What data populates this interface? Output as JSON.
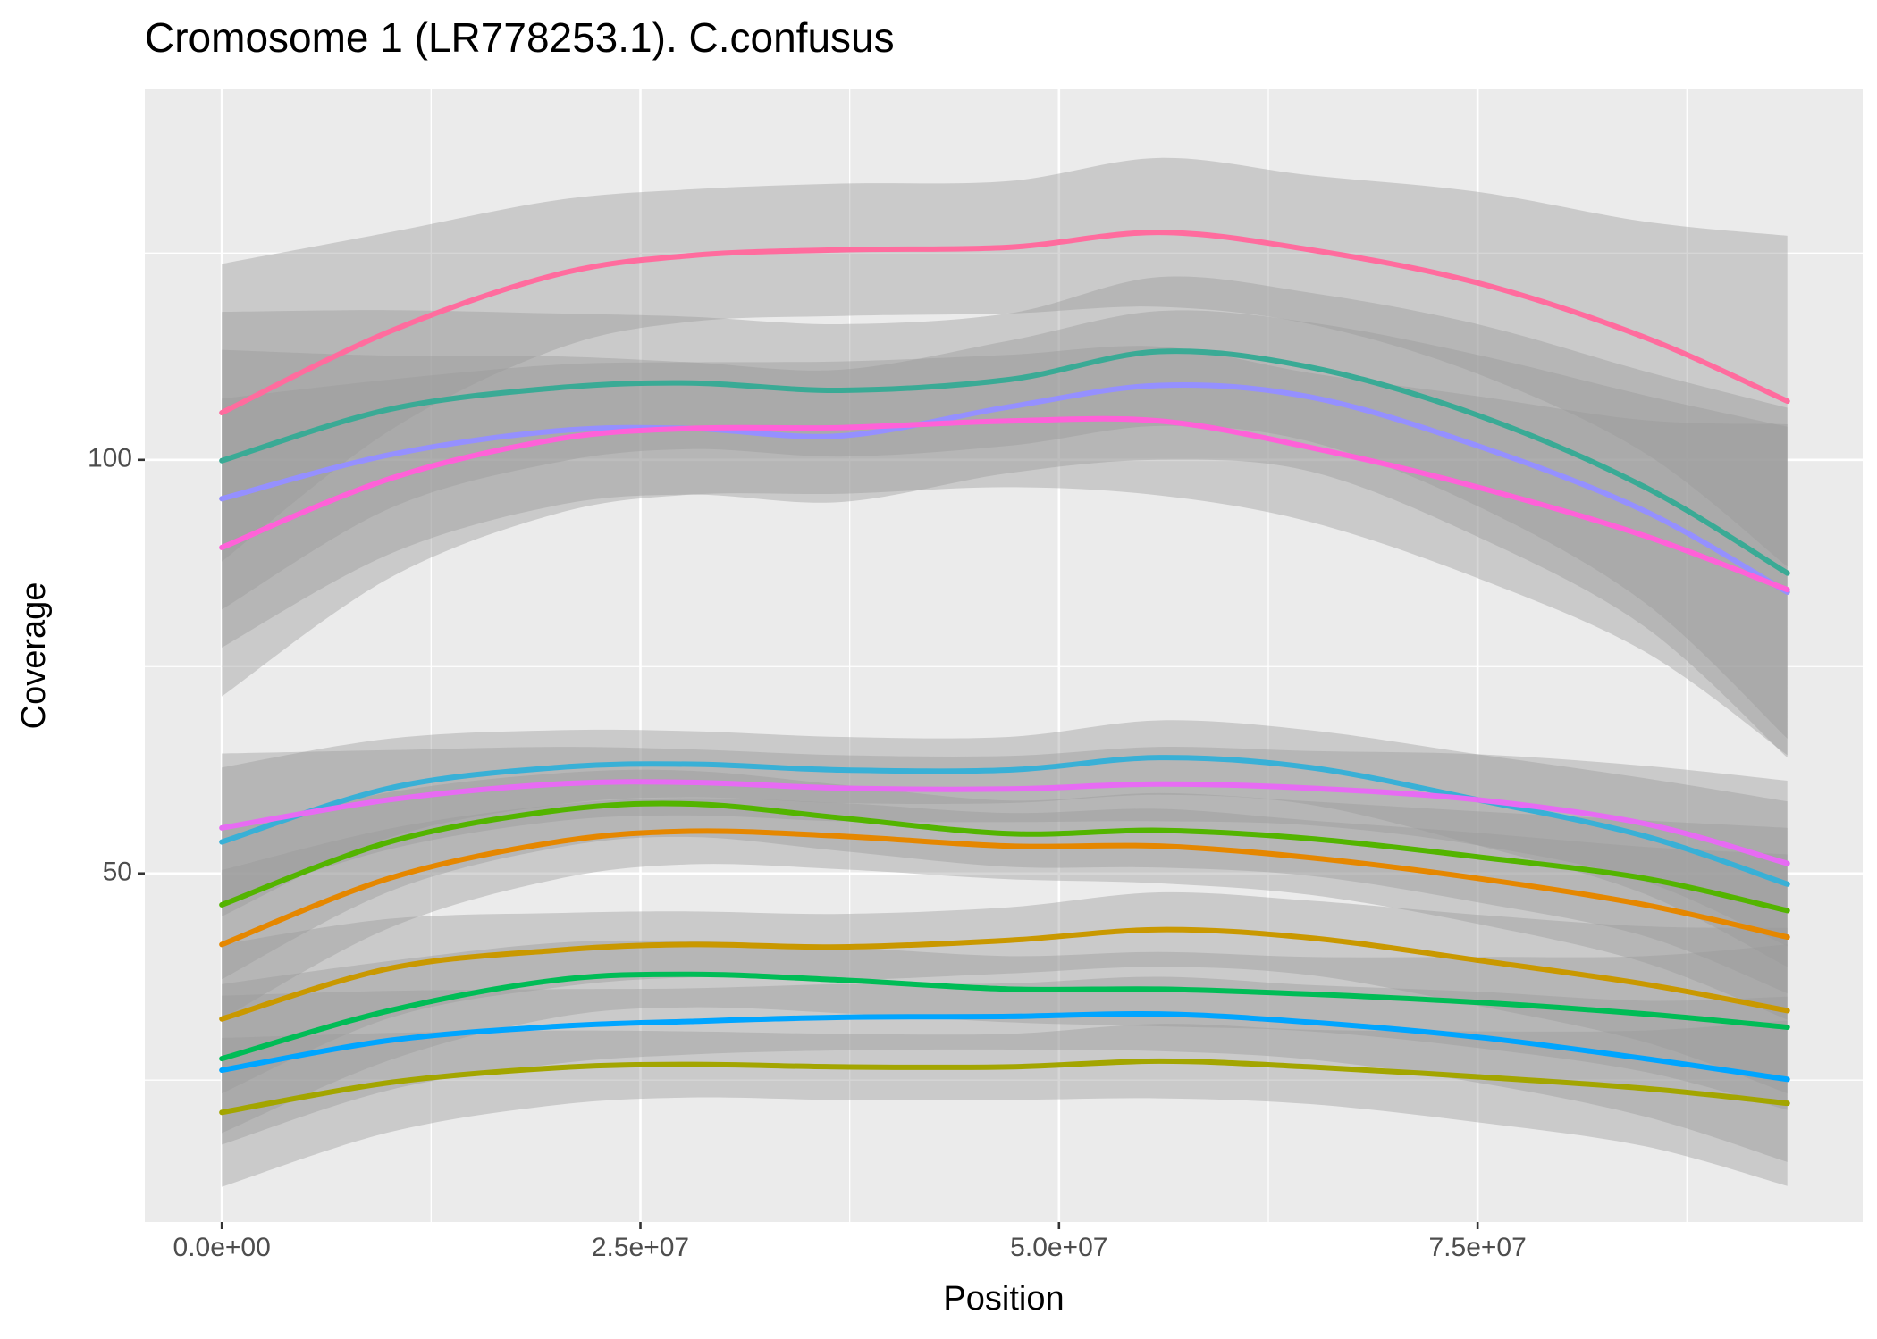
{
  "chart_data": {
    "type": "line",
    "title": "Cromosome 1 (LR778253.1). C.confusus",
    "xlabel": "Position",
    "ylabel": "Coverage",
    "x": [
      0,
      10000000,
      20000000,
      28000000,
      37000000,
      47000000,
      56000000,
      65000000,
      75000000,
      85000000,
      93500000
    ],
    "xlim": [
      -4600000,
      98000000
    ],
    "ylim": [
      7.85,
      144.8
    ],
    "xticks": [
      {
        "value": 0,
        "label": "0.0e+00"
      },
      {
        "value": 25000000,
        "label": "2.5e+07"
      },
      {
        "value": 50000000,
        "label": "5.0e+07"
      },
      {
        "value": 75000000,
        "label": "7.5e+07"
      }
    ],
    "yticks": [
      50,
      100
    ],
    "minor_xticks": [
      12500000,
      37500000,
      62500000,
      87500000
    ],
    "minor_yticks": [
      25,
      75,
      125
    ],
    "grid": true,
    "ribbon_color": "#999999",
    "series": [
      {
        "color": "#FF6C9E",
        "values": [
          105.7,
          115.5,
          122.4,
          124.7,
          125.4,
          125.7,
          127.5,
          125.4,
          121.4,
          114.8,
          107.1
        ],
        "ci_halfwidth": [
          18,
          12,
          9,
          8,
          8,
          8,
          9,
          9,
          11,
          14,
          20
        ]
      },
      {
        "color": "#3AAA95",
        "values": [
          99.9,
          106.1,
          108.7,
          109.3,
          108.4,
          109.7,
          113.1,
          111.2,
          105.4,
          96.7,
          86.3
        ],
        "ci_halfwidth": [
          18,
          12,
          9,
          8,
          8,
          8,
          9,
          9,
          11,
          14,
          20
        ]
      },
      {
        "color": "#9590FF",
        "values": [
          95.3,
          100.6,
          103.5,
          103.8,
          102.9,
          106.4,
          109.0,
          107.6,
          101.7,
          93.8,
          84.0
        ],
        "ci_halfwidth": [
          18,
          12,
          9,
          8,
          8,
          8,
          9,
          9,
          11,
          14,
          20
        ]
      },
      {
        "color": "#FF61D8",
        "values": [
          89.4,
          97.7,
          102.5,
          103.8,
          103.9,
          104.7,
          104.7,
          101.5,
          96.7,
          90.8,
          84.3
        ],
        "ci_halfwidth": [
          18,
          12,
          9,
          8,
          8,
          8,
          9,
          9,
          11,
          14,
          20
        ]
      },
      {
        "color": "#39B0D6",
        "values": [
          53.8,
          60.3,
          62.8,
          63.2,
          62.5,
          62.5,
          64.0,
          62.8,
          58.9,
          54.5,
          48.7
        ],
        "ci_halfwidth": [
          9,
          6,
          4.5,
          4,
          4,
          4,
          4.5,
          4.5,
          5.5,
          7,
          10
        ]
      },
      {
        "color": "#E76BF3",
        "values": [
          55.5,
          58.9,
          60.8,
          61.0,
          60.3,
          60.2,
          60.8,
          60.3,
          58.9,
          56.0,
          51.2
        ],
        "ci_halfwidth": [
          9,
          6,
          4.5,
          4,
          4,
          4,
          4.5,
          4.5,
          5.5,
          7,
          10
        ]
      },
      {
        "color": "#53B400",
        "values": [
          46.2,
          53.8,
          57.6,
          58.4,
          56.7,
          54.8,
          55.2,
          54.2,
          52.0,
          49.4,
          45.5
        ],
        "ci_halfwidth": [
          9,
          6,
          4.5,
          4,
          4,
          4,
          4.5,
          4.5,
          5.5,
          7,
          10
        ]
      },
      {
        "color": "#E58700",
        "values": [
          41.4,
          49.4,
          53.8,
          55.1,
          54.5,
          53.3,
          53.3,
          51.9,
          49.4,
          46.2,
          42.3
        ],
        "ci_halfwidth": [
          9,
          6,
          4.5,
          4,
          4,
          4,
          4.5,
          4.5,
          5.5,
          7,
          10
        ]
      },
      {
        "color": "#C99800",
        "values": [
          32.4,
          38.5,
          40.7,
          41.4,
          41.1,
          41.9,
          43.2,
          42.2,
          39.5,
          36.6,
          33.4
        ],
        "ci_halfwidth": [
          9,
          6,
          4.5,
          4,
          4,
          4,
          4.5,
          4.5,
          5.5,
          7,
          10
        ]
      },
      {
        "color": "#00BC56",
        "values": [
          27.6,
          33.4,
          37.1,
          37.8,
          37.1,
          36.0,
          36.0,
          35.4,
          34.4,
          33.0,
          31.4
        ],
        "ci_halfwidth": [
          9,
          6,
          4.5,
          4,
          4,
          4,
          4.5,
          4.5,
          5.5,
          7,
          10
        ]
      },
      {
        "color": "#00A5FF",
        "values": [
          26.2,
          29.8,
          31.5,
          32.1,
          32.6,
          32.7,
          33.0,
          32.0,
          30.2,
          27.6,
          25.1
        ],
        "ci_halfwidth": [
          9,
          6,
          4.5,
          4,
          4,
          4,
          4.5,
          4.5,
          5.5,
          7,
          10
        ]
      },
      {
        "color": "#A3A500",
        "values": [
          21.1,
          24.7,
          26.5,
          26.9,
          26.6,
          26.6,
          27.3,
          26.6,
          25.4,
          24.0,
          22.2
        ],
        "ci_halfwidth": [
          9,
          6,
          4.5,
          4,
          4,
          4,
          4.5,
          4.5,
          5.5,
          7,
          10
        ]
      }
    ]
  }
}
